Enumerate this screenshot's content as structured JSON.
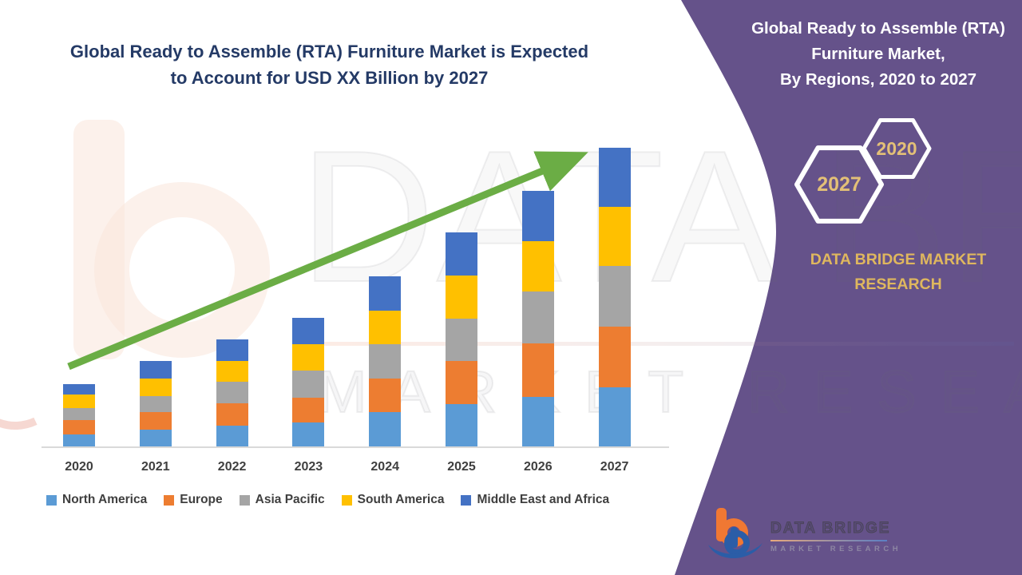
{
  "main_title": {
    "line1": "Global Ready to Assemble (RTA) Furniture Market is Expected",
    "line2": "to Account for USD XX Billion by 2027"
  },
  "right_panel": {
    "title_line1": "Global Ready to Assemble (RTA)",
    "title_line2": "Furniture Market,",
    "title_line3": "By Regions, 2020 to 2027",
    "hex_year_top": "2020",
    "hex_year_bottom": "2027",
    "brand": "DATA BRIDGE MARKET RESEARCH",
    "background_color": "#65528A",
    "accent_gold": "#DFB75E"
  },
  "watermark": {
    "text_line1": "DATA BRIDGE",
    "text_line2": "MARKET RESEARCH"
  },
  "footer_logo": {
    "brand_line1": "DATA BRIDGE",
    "brand_line2": "MARKET RESEARCH"
  },
  "icons": {
    "trend_arrow": "diagonal up-right arrow, green #6BAD45",
    "hexagon_outline": "white outlined hexagon, pointy left-right",
    "b_logo": "orange b with blue D swoosh"
  },
  "chart_data": {
    "type": "bar",
    "stacked": true,
    "title": "Global Ready to Assemble (RTA) Furniture Market is Expected to Account for USD XX Billion by 2027",
    "xlabel": "",
    "ylabel": "USD Billion (values masked as XX)",
    "units": "relative index estimated from pixel heights; no y-axis shown",
    "grid": false,
    "legend_position": "bottom",
    "trend_arrow": true,
    "categories": [
      "2020",
      "2021",
      "2022",
      "2023",
      "2024",
      "2025",
      "2026",
      "2027"
    ],
    "series": [
      {
        "name": "North America",
        "color": "#5B9BD5",
        "values": [
          15,
          21,
          26,
          30,
          43,
          53,
          62,
          74
        ]
      },
      {
        "name": "Europe",
        "color": "#ED7D31",
        "values": [
          18,
          22,
          28,
          31,
          42,
          54,
          67,
          76
        ]
      },
      {
        "name": "Asia Pacific",
        "color": "#A5A5A5",
        "values": [
          15,
          20,
          27,
          34,
          43,
          53,
          65,
          76
        ]
      },
      {
        "name": "South America",
        "color": "#FFC000",
        "values": [
          17,
          22,
          26,
          33,
          42,
          54,
          63,
          74
        ]
      },
      {
        "name": "Middle East and Africa",
        "color": "#4472C4",
        "values": [
          13,
          22,
          27,
          33,
          43,
          54,
          63,
          74
        ]
      }
    ],
    "totals": [
      78,
      107,
      134,
      161,
      213,
      268,
      320,
      374
    ]
  }
}
